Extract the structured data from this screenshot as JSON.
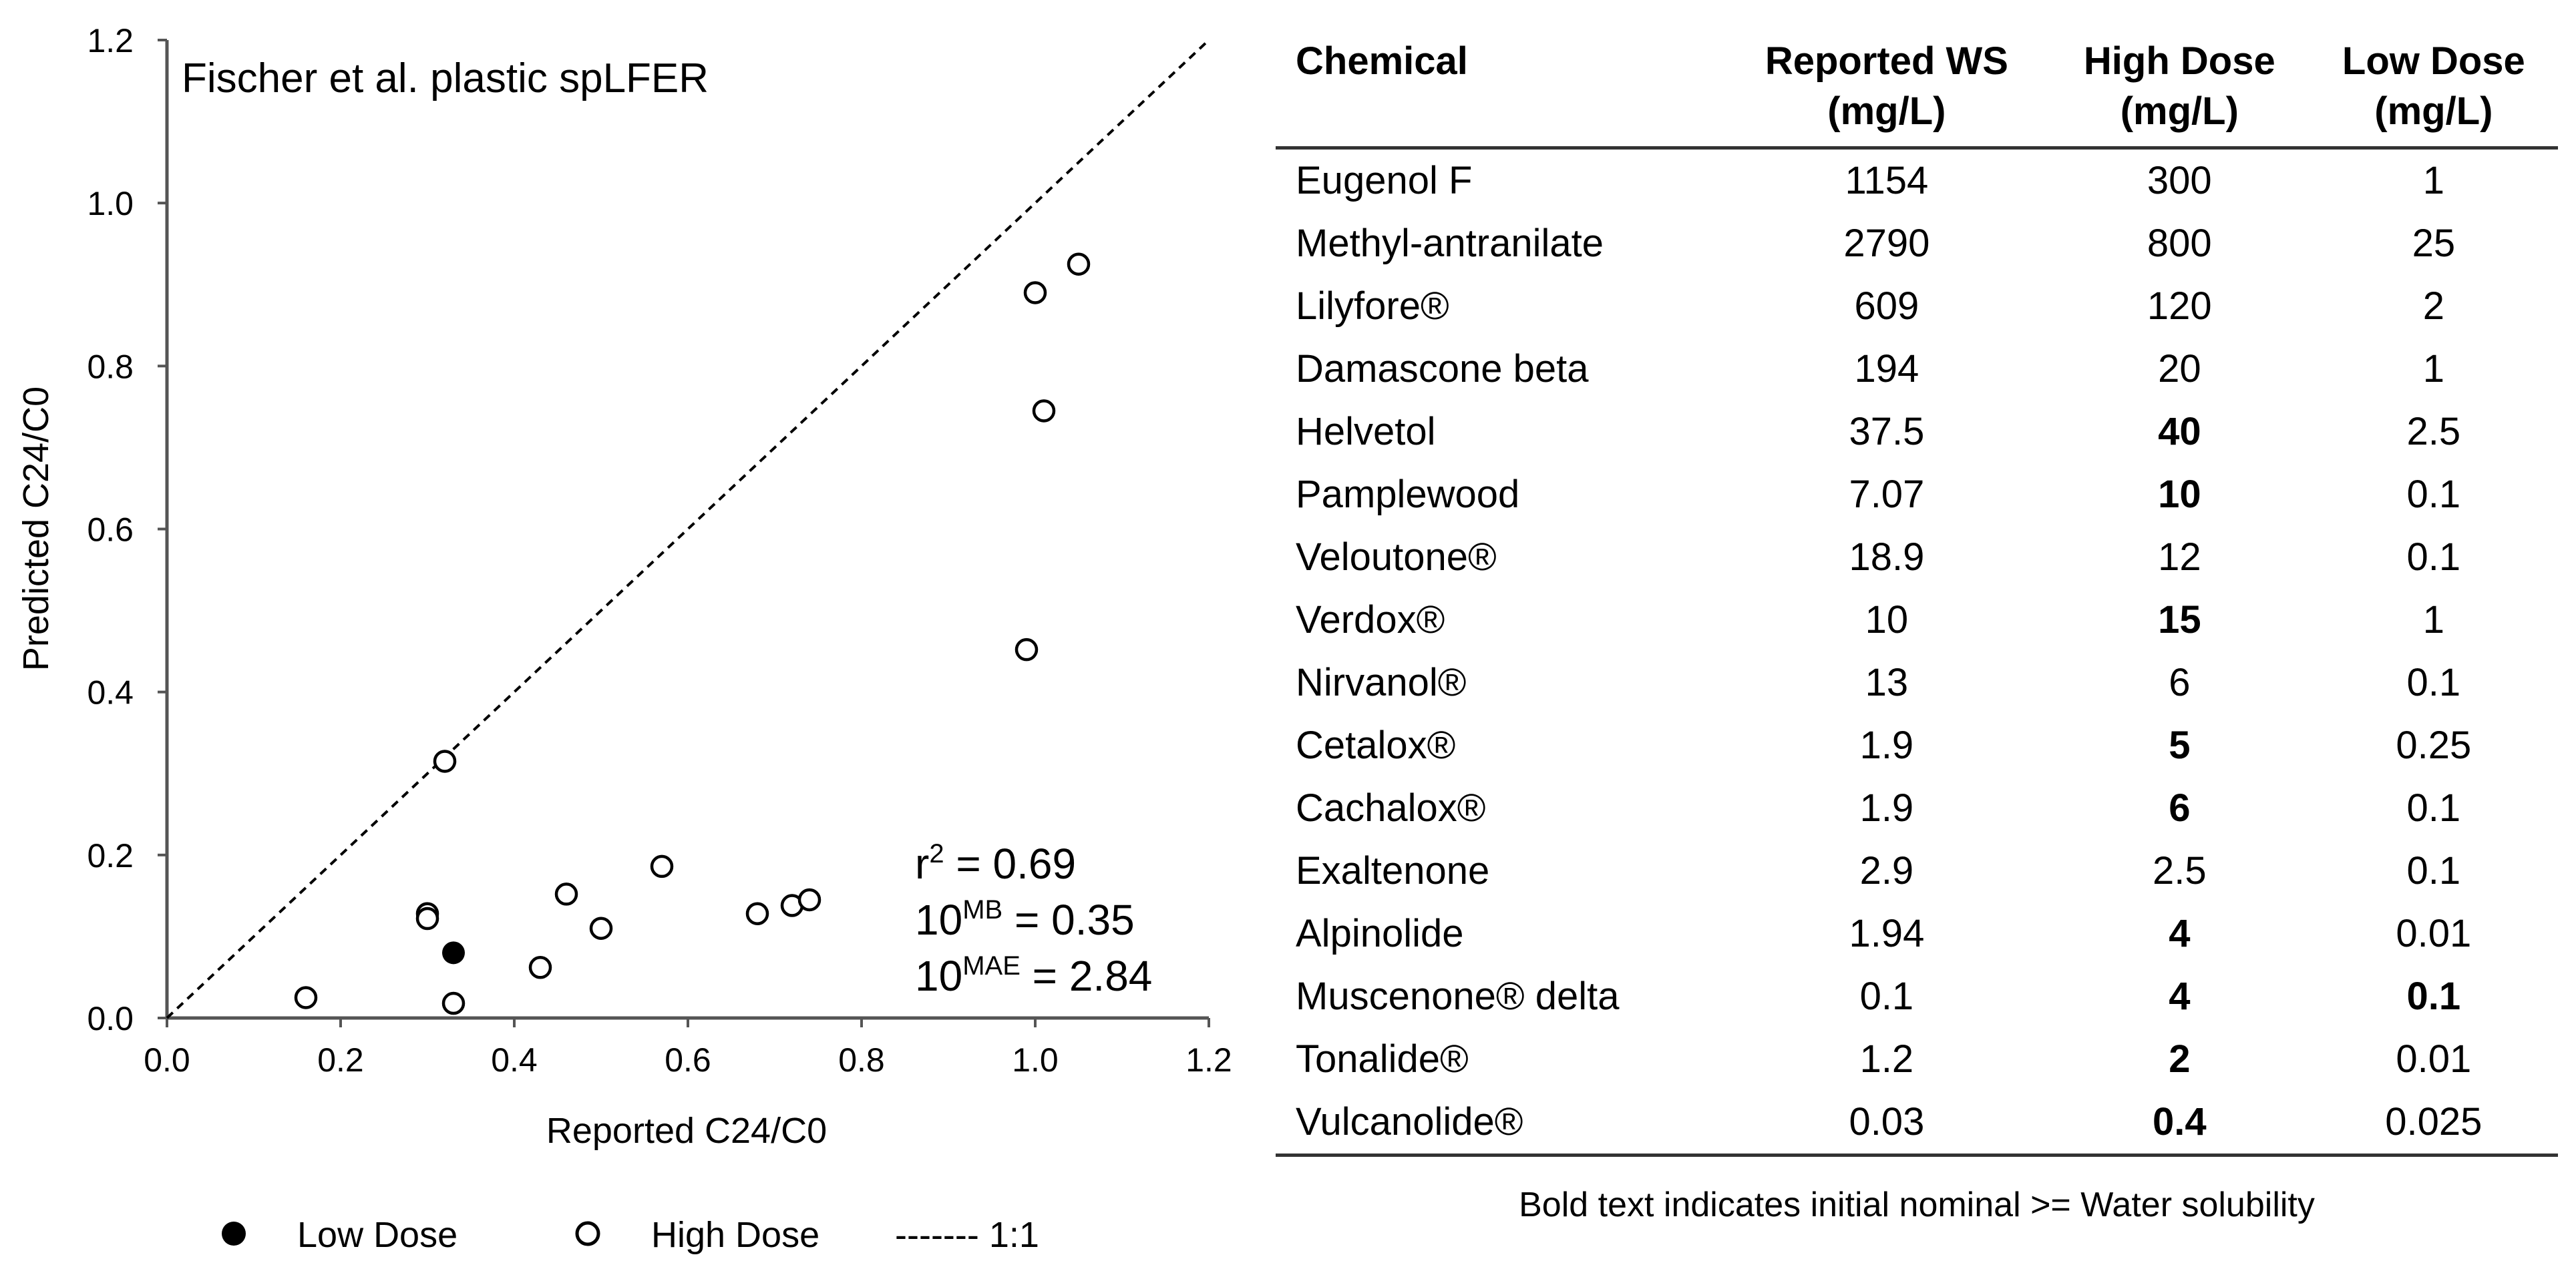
{
  "chart_data": {
    "type": "scatter",
    "title": "Fischer et al. plastic spLFER",
    "xlabel": "Reported C24/C0",
    "ylabel": "Predicted C24/C0",
    "xlim": [
      0,
      1.2
    ],
    "ylim": [
      0,
      1.2
    ],
    "xticks": [
      "0.0",
      "0.2",
      "0.4",
      "0.6",
      "0.8",
      "1.0",
      "1.2"
    ],
    "yticks": [
      "0.0",
      "0.2",
      "0.4",
      "0.6",
      "0.8",
      "1.0",
      "1.2"
    ],
    "series": [
      {
        "name": "Low Dose",
        "marker": "filled-circle",
        "points": [
          [
            0.33,
            0.08
          ]
        ]
      },
      {
        "name": "High Dose",
        "marker": "open-circle",
        "points": [
          [
            0.16,
            0.025
          ],
          [
            0.3,
            0.128
          ],
          [
            0.3,
            0.122
          ],
          [
            0.32,
            0.315
          ],
          [
            0.33,
            0.018
          ],
          [
            0.43,
            0.062
          ],
          [
            0.46,
            0.152
          ],
          [
            0.5,
            0.11
          ],
          [
            0.57,
            0.186
          ],
          [
            0.68,
            0.128
          ],
          [
            0.72,
            0.138
          ],
          [
            0.74,
            0.145
          ],
          [
            0.99,
            0.452
          ],
          [
            1.0,
            0.89
          ],
          [
            1.01,
            0.745
          ],
          [
            1.05,
            0.925
          ]
        ]
      },
      {
        "name": "1:1",
        "type": "line",
        "points": [
          [
            0,
            0
          ],
          [
            1.2,
            1.2
          ]
        ]
      }
    ],
    "legend_labels": [
      "Low Dose",
      "High Dose",
      "------- 1:1"
    ],
    "stats": {
      "r2_prefix": "r",
      "r2_sup": "2",
      "r2_value": " = 0.69",
      "mb_base": "10",
      "mb_sup": "MB",
      "mb_value": " = 0.35",
      "mae_base": "10",
      "mae_sup": "MAE",
      "mae_value": " = 2.84"
    }
  },
  "table": {
    "headers": [
      {
        "line1": "Chemical",
        "line2": ""
      },
      {
        "line1": "Reported WS",
        "line2": "(mg/L)"
      },
      {
        "line1": "High Dose",
        "line2": "(mg/L)"
      },
      {
        "line1": "Low Dose",
        "line2": "(mg/L)"
      }
    ],
    "rows": [
      {
        "chemical": "Eugenol F",
        "ws": "1154",
        "high": "300",
        "low": "1",
        "high_bold": false,
        "low_bold": false
      },
      {
        "chemical": "Methyl-antranilate",
        "ws": "2790",
        "high": "800",
        "low": "25",
        "high_bold": false,
        "low_bold": false
      },
      {
        "chemical": "Lilyfore®",
        "ws": "609",
        "high": "120",
        "low": "2",
        "high_bold": false,
        "low_bold": false
      },
      {
        "chemical": "Damascone beta",
        "ws": "194",
        "high": "20",
        "low": "1",
        "high_bold": false,
        "low_bold": false
      },
      {
        "chemical": "Helvetol",
        "ws": "37.5",
        "high": "40",
        "low": "2.5",
        "high_bold": true,
        "low_bold": false
      },
      {
        "chemical": "Pamplewood",
        "ws": "7.07",
        "high": "10",
        "low": "0.1",
        "high_bold": true,
        "low_bold": false
      },
      {
        "chemical": "Veloutone®",
        "ws": "18.9",
        "high": "12",
        "low": "0.1",
        "high_bold": false,
        "low_bold": false
      },
      {
        "chemical": "Verdox®",
        "ws": "10",
        "high": "15",
        "low": "1",
        "high_bold": true,
        "low_bold": false
      },
      {
        "chemical": "Nirvanol®",
        "ws": "13",
        "high": "6",
        "low": "0.1",
        "high_bold": false,
        "low_bold": false
      },
      {
        "chemical": "Cetalox®",
        "ws": "1.9",
        "high": "5",
        "low": "0.25",
        "high_bold": true,
        "low_bold": false
      },
      {
        "chemical": "Cachalox®",
        "ws": "1.9",
        "high": "6",
        "low": "0.1",
        "high_bold": true,
        "low_bold": false
      },
      {
        "chemical": "Exaltenone",
        "ws": "2.9",
        "high": "2.5",
        "low": "0.1",
        "high_bold": false,
        "low_bold": false
      },
      {
        "chemical": "Alpinolide",
        "ws": "1.94",
        "high": "4",
        "low": "0.01",
        "high_bold": true,
        "low_bold": false
      },
      {
        "chemical": "Muscenone® delta",
        "ws": "0.1",
        "high": "4",
        "low": "0.1",
        "high_bold": true,
        "low_bold": true
      },
      {
        "chemical": "Tonalide®",
        "ws": "1.2",
        "high": "2",
        "low": "0.01",
        "high_bold": true,
        "low_bold": false
      },
      {
        "chemical": "Vulcanolide®",
        "ws": "0.03",
        "high": "0.4",
        "low": "0.025",
        "high_bold": true,
        "low_bold": false
      }
    ],
    "note": "Bold text indicates initial nominal >= Water solubility"
  }
}
